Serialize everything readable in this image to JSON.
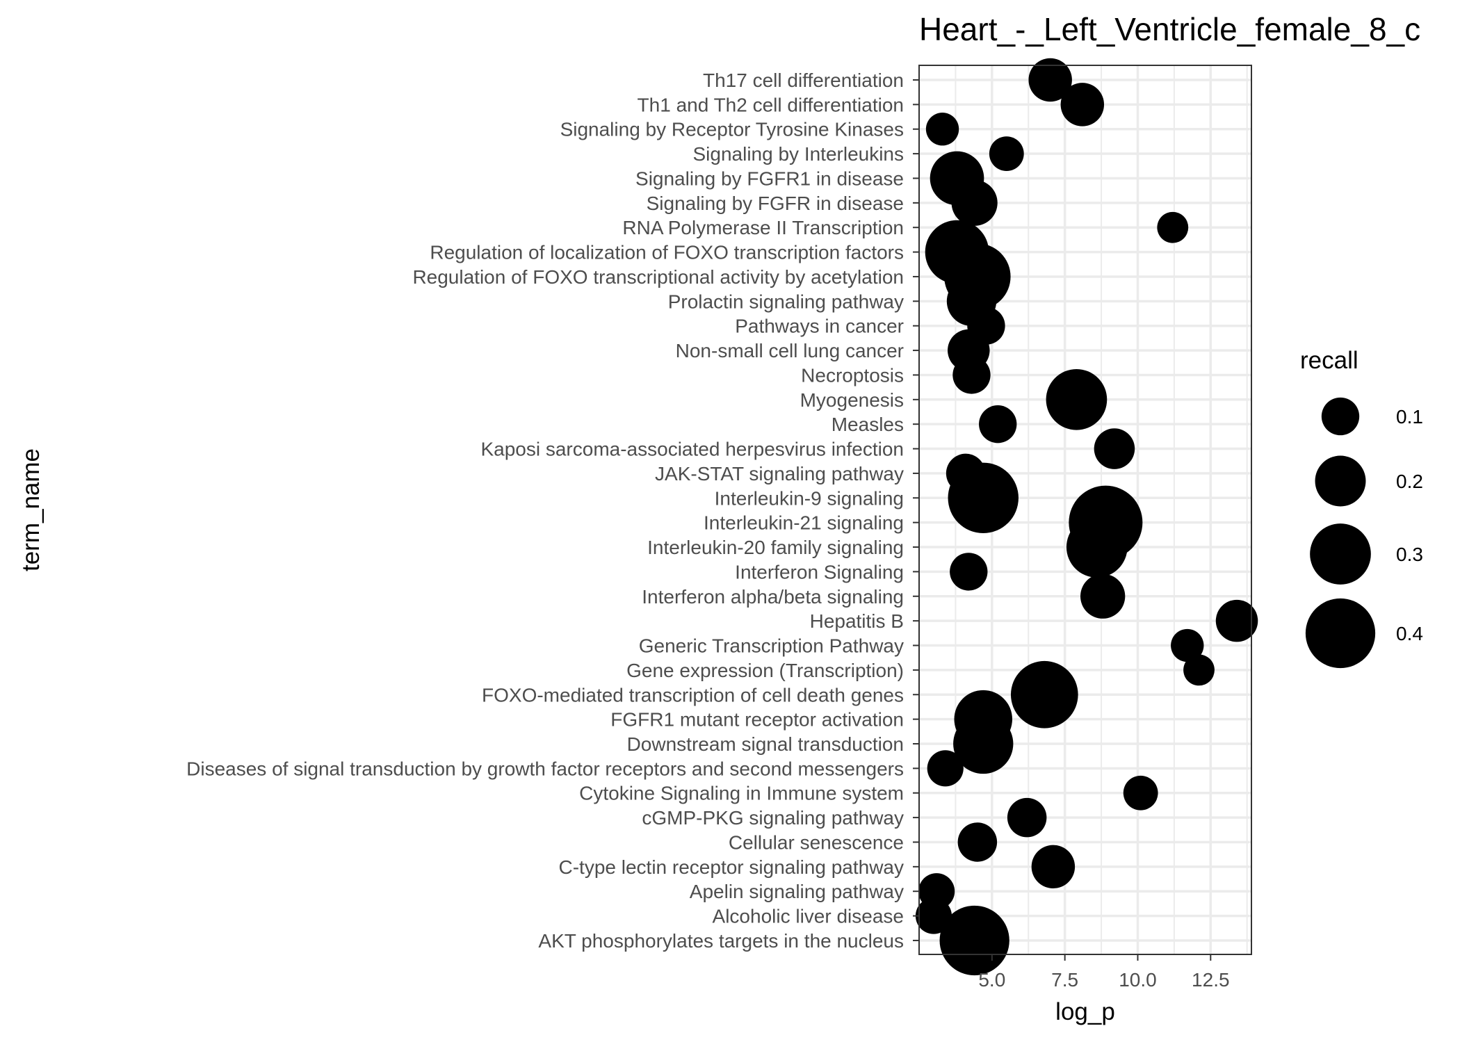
{
  "chart_data": {
    "type": "scatter",
    "title": "Heart_-_Left_Ventricle_female_8_c",
    "xlabel": "log_p",
    "ylabel": "term_name",
    "x_ticks": [
      5.0,
      7.5,
      10.0,
      12.5
    ],
    "x_tick_labels": [
      "5.0",
      "7.5",
      "10.0",
      "12.5"
    ],
    "xlim": [
      2.5,
      13.9
    ],
    "grid": true,
    "size_variable": "recall",
    "legend": {
      "title": "recall",
      "placement": "right",
      "entries": [
        {
          "label": "0.1",
          "value": 0.1
        },
        {
          "label": "0.2",
          "value": 0.2
        },
        {
          "label": "0.3",
          "value": 0.3
        },
        {
          "label": "0.4",
          "value": 0.4
        }
      ]
    },
    "size_range": [
      0.03,
      0.45
    ],
    "categories": [
      "Th17 cell differentiation",
      "Th1 and Th2 cell differentiation",
      "Signaling by Receptor Tyrosine Kinases",
      "Signaling by Interleukins",
      "Signaling by FGFR1 in disease",
      "Signaling by FGFR in disease",
      "RNA Polymerase II Transcription",
      "Regulation of localization of FOXO transcription factors",
      "Regulation of FOXO transcriptional activity by acetylation",
      "Prolactin signaling pathway",
      "Pathways in cancer",
      "Non-small cell lung cancer",
      "Necroptosis",
      "Myogenesis",
      "Measles",
      "Kaposi sarcoma-associated herpesvirus infection",
      "JAK-STAT signaling pathway",
      "Interleukin-9 signaling",
      "Interleukin-21 signaling",
      "Interleukin-20 family signaling",
      "Interferon Signaling",
      "Interferon alpha/beta signaling",
      "Hepatitis B",
      "Generic Transcription Pathway",
      "Gene expression (Transcription)",
      "FOXO-mediated transcription of cell death genes",
      "FGFR1 mutant receptor activation",
      "Downstream signal transduction",
      "Diseases of signal transduction by growth factor receptors and second messengers",
      "Cytokine Signaling in Immune system",
      "cGMP-PKG signaling pathway",
      "Cellular senescence",
      "C-type lectin receptor signaling pathway",
      "Apelin signaling pathway",
      "Alcoholic liver disease",
      "AKT phosphorylates targets in the nucleus"
    ],
    "points": [
      {
        "term": "Th17 cell differentiation",
        "log_p": 7.0,
        "recall": 0.14
      },
      {
        "term": "Th1 and Th2 cell differentiation",
        "log_p": 8.1,
        "recall": 0.14
      },
      {
        "term": "Signaling by Receptor Tyrosine Kinases",
        "log_p": 3.3,
        "recall": 0.07
      },
      {
        "term": "Signaling by Interleukins",
        "log_p": 5.5,
        "recall": 0.08
      },
      {
        "term": "Signaling by FGFR1 in disease",
        "log_p": 3.8,
        "recall": 0.23
      },
      {
        "term": "Signaling by FGFR in disease",
        "log_p": 4.4,
        "recall": 0.16
      },
      {
        "term": "RNA Polymerase II Transcription",
        "log_p": 11.2,
        "recall": 0.06
      },
      {
        "term": "Regulation of localization of FOXO transcription factors",
        "log_p": 3.8,
        "recall": 0.33
      },
      {
        "term": "Regulation of FOXO transcriptional activity by acetylation",
        "log_p": 4.5,
        "recall": 0.36
      },
      {
        "term": "Prolactin signaling pathway",
        "log_p": 4.3,
        "recall": 0.19
      },
      {
        "term": "Pathways in cancer",
        "log_p": 4.8,
        "recall": 0.1
      },
      {
        "term": "Non-small cell lung cancer",
        "log_p": 4.2,
        "recall": 0.13
      },
      {
        "term": "Necroptosis",
        "log_p": 4.3,
        "recall": 0.1
      },
      {
        "term": "Myogenesis",
        "log_p": 7.9,
        "recall": 0.3
      },
      {
        "term": "Measles",
        "log_p": 5.2,
        "recall": 0.1
      },
      {
        "term": "Kaposi sarcoma-associated herpesvirus infection",
        "log_p": 9.2,
        "recall": 0.12
      },
      {
        "term": "JAK-STAT signaling pathway",
        "log_p": 4.1,
        "recall": 0.11
      },
      {
        "term": "Interleukin-9 signaling",
        "log_p": 4.7,
        "recall": 0.41
      },
      {
        "term": "Interleukin-21 signaling",
        "log_p": 8.9,
        "recall": 0.45
      },
      {
        "term": "Interleukin-20 family signaling",
        "log_p": 8.6,
        "recall": 0.3
      },
      {
        "term": "Interferon Signaling",
        "log_p": 4.2,
        "recall": 0.1
      },
      {
        "term": "Interferon alpha/beta signaling",
        "log_p": 8.8,
        "recall": 0.15
      },
      {
        "term": "Hepatitis B",
        "log_p": 13.4,
        "recall": 0.13
      },
      {
        "term": "Generic Transcription Pathway",
        "log_p": 11.7,
        "recall": 0.07
      },
      {
        "term": "Gene expression (Transcription)",
        "log_p": 12.1,
        "recall": 0.06
      },
      {
        "term": "FOXO-mediated transcription of cell death genes",
        "log_p": 6.8,
        "recall": 0.37
      },
      {
        "term": "FGFR1 mutant receptor activation",
        "log_p": 4.7,
        "recall": 0.27
      },
      {
        "term": "Downstream signal transduction",
        "log_p": 4.7,
        "recall": 0.29
      },
      {
        "term": "Diseases of signal transduction by growth factor receptors and second messengers",
        "log_p": 3.4,
        "recall": 0.09
      },
      {
        "term": "Cytokine Signaling in Immune system",
        "log_p": 10.1,
        "recall": 0.08
      },
      {
        "term": "cGMP-PKG signaling pathway",
        "log_p": 6.2,
        "recall": 0.11
      },
      {
        "term": "Cellular senescence",
        "log_p": 4.5,
        "recall": 0.11
      },
      {
        "term": "C-type lectin receptor signaling pathway",
        "log_p": 7.1,
        "recall": 0.14
      },
      {
        "term": "Apelin signaling pathway",
        "log_p": 3.1,
        "recall": 0.09
      },
      {
        "term": "Alcoholic liver disease",
        "log_p": 3.0,
        "recall": 0.09
      },
      {
        "term": "AKT phosphorylates targets in the nucleus",
        "log_p": 4.4,
        "recall": 0.4
      }
    ],
    "colors": {
      "point": "#000000",
      "panel_background": "#ffffff",
      "grid": "#ebebeb",
      "panel_border": "#333333",
      "tick_text": "#4d4d4d"
    }
  }
}
